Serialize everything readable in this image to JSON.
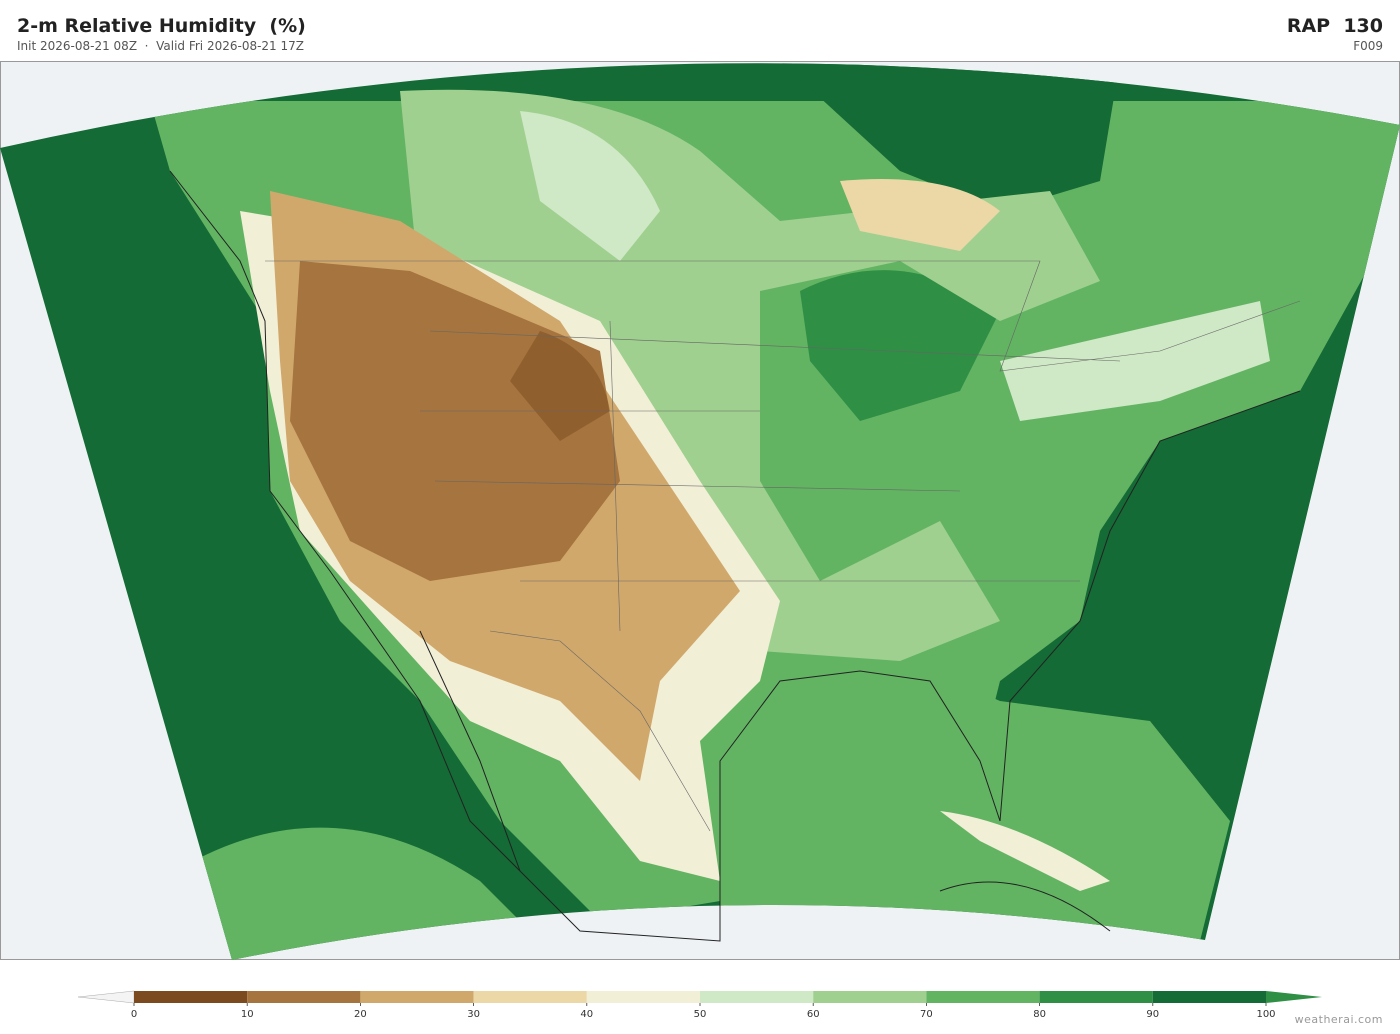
{
  "header": {
    "title": "2-m Relative Humidity  (%)",
    "subtitle": "Init 2026-08-21 08Z  ·  Valid Fri 2026-08-21 17Z",
    "model": "RAP  130",
    "forecast_hour": "F009"
  },
  "colorbar": {
    "ticks": [
      0,
      10,
      20,
      30,
      40,
      50,
      60,
      70,
      80,
      90,
      100
    ],
    "colors": [
      "#7b4a1e",
      "#a5743f",
      "#d1a86b",
      "#ecd7a6",
      "#f2efd7",
      "#cfe8c5",
      "#9fd08f",
      "#62b463",
      "#2f8f45",
      "#146b35"
    ],
    "under_color": "#f4f4f4",
    "over_color": "#2f8f45"
  },
  "credit": "weatherai.com"
}
